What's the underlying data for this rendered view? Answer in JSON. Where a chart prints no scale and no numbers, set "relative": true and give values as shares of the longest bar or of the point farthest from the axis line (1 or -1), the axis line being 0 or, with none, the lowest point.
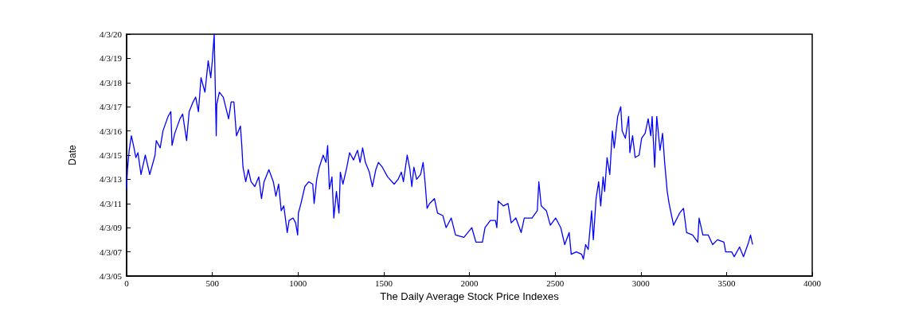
{
  "chart_data": {
    "type": "line",
    "xlabel": "The Daily Average Stock Price Indexes",
    "ylabel": "Date",
    "relative": true,
    "annotations": [
      "4/3/05",
      "4/3/07",
      "4/3/09",
      "4/3/11",
      "4/3/13",
      "4/3/15",
      "4/3/16",
      "4/3/17",
      "4/3/18",
      "4/3/19",
      "4/3/20"
    ],
    "xlim": [
      0,
      4000
    ],
    "xticks": [
      0,
      500,
      1000,
      1500,
      2000,
      2500,
      3000,
      3500,
      4000
    ],
    "grid": false,
    "marker": "none",
    "line_style": "solid",
    "x": [
      0,
      5,
      15,
      28,
      43,
      54,
      66,
      84,
      109,
      135,
      166,
      173,
      196,
      212,
      242,
      258,
      265,
      281,
      311,
      327,
      350,
      365,
      388,
      403,
      419,
      434,
      457,
      476,
      491,
      500,
      511,
      523,
      526,
      541,
      564,
      595,
      610,
      626,
      641,
      664,
      672,
      679,
      695,
      710,
      726,
      748,
      771,
      787,
      802,
      830,
      856,
      871,
      887,
      902,
      917,
      937,
      948,
      971,
      986,
      998,
      1002,
      1017,
      1040,
      1063,
      1086,
      1094,
      1109,
      1124,
      1147,
      1163,
      1173,
      1183,
      1198,
      1209,
      1224,
      1239,
      1247,
      1262,
      1285,
      1301,
      1324,
      1347,
      1362,
      1377,
      1393,
      1416,
      1434,
      1454,
      1469,
      1492,
      1523,
      1561,
      1584,
      1603,
      1615,
      1637,
      1653,
      1664,
      1676,
      1692,
      1715,
      1730,
      1741,
      1753,
      1768,
      1796,
      1814,
      1845,
      1864,
      1894,
      1919,
      1968,
      2014,
      2038,
      2076,
      2091,
      2122,
      2152,
      2160,
      2168,
      2198,
      2225,
      2244,
      2271,
      2302,
      2320,
      2365,
      2396,
      2405,
      2419,
      2449,
      2472,
      2503,
      2533,
      2556,
      2582,
      2594,
      2624,
      2655,
      2665,
      2678,
      2693,
      2713,
      2723,
      2739,
      2754,
      2766,
      2780,
      2789,
      2803,
      2819,
      2834,
      2845,
      2865,
      2883,
      2891,
      2910,
      2929,
      2936,
      2952,
      2967,
      2990,
      3005,
      3025,
      3043,
      3058,
      3066,
      3081,
      3093,
      3112,
      3127,
      3139,
      3154,
      3165,
      3191,
      3226,
      3249,
      3267,
      3302,
      3332,
      3340,
      3362,
      3393,
      3419,
      3447,
      3485,
      3495,
      3530,
      3545,
      3576,
      3599,
      3629,
      3640,
      3652
    ],
    "series": [
      {
        "color": "#0000ff",
        "values": [
          0.36,
          0.44,
          0.52,
          0.58,
          0.53,
          0.49,
          0.51,
          0.42,
          0.5,
          0.42,
          0.5,
          0.56,
          0.53,
          0.6,
          0.66,
          0.68,
          0.54,
          0.59,
          0.65,
          0.67,
          0.56,
          0.68,
          0.72,
          0.74,
          0.68,
          0.82,
          0.76,
          0.89,
          0.82,
          0.89,
          1,
          0.58,
          0.71,
          0.76,
          0.74,
          0.65,
          0.72,
          0.72,
          0.58,
          0.62,
          0.54,
          0.45,
          0.39,
          0.44,
          0.39,
          0.37,
          0.41,
          0.32,
          0.39,
          0.44,
          0.39,
          0.33,
          0.38,
          0.27,
          0.29,
          0.18,
          0.23,
          0.24,
          0.22,
          0.17,
          0.26,
          0.3,
          0.37,
          0.39,
          0.38,
          0.3,
          0.4,
          0.45,
          0.5,
          0.47,
          0.54,
          0.36,
          0.41,
          0.24,
          0.35,
          0.26,
          0.43,
          0.38,
          0.45,
          0.51,
          0.48,
          0.52,
          0.47,
          0.53,
          0.47,
          0.43,
          0.37,
          0.44,
          0.47,
          0.45,
          0.41,
          0.38,
          0.4,
          0.43,
          0.39,
          0.5,
          0.44,
          0.37,
          0.45,
          0.4,
          0.42,
          0.47,
          0.39,
          0.28,
          0.3,
          0.32,
          0.26,
          0.25,
          0.2,
          0.24,
          0.17,
          0.16,
          0.2,
          0.14,
          0.14,
          0.2,
          0.23,
          0.23,
          0.2,
          0.31,
          0.29,
          0.3,
          0.22,
          0.24,
          0.18,
          0.24,
          0.24,
          0.27,
          0.39,
          0.29,
          0.27,
          0.21,
          0.24,
          0.2,
          0.13,
          0.18,
          0.09,
          0.1,
          0.09,
          0.07,
          0.13,
          0.11,
          0.27,
          0.15,
          0.32,
          0.39,
          0.29,
          0.41,
          0.35,
          0.49,
          0.42,
          0.6,
          0.53,
          0.66,
          0.7,
          0.6,
          0.57,
          0.66,
          0.51,
          0.58,
          0.49,
          0.5,
          0.57,
          0.59,
          0.65,
          0.58,
          0.66,
          0.45,
          0.66,
          0.52,
          0.59,
          0.47,
          0.35,
          0.3,
          0.21,
          0.26,
          0.28,
          0.18,
          0.17,
          0.14,
          0.24,
          0.17,
          0.17,
          0.13,
          0.15,
          0.14,
          0.1,
          0.1,
          0.08,
          0.12,
          0.08,
          0.14,
          0.17,
          0.13
        ]
      }
    ]
  }
}
